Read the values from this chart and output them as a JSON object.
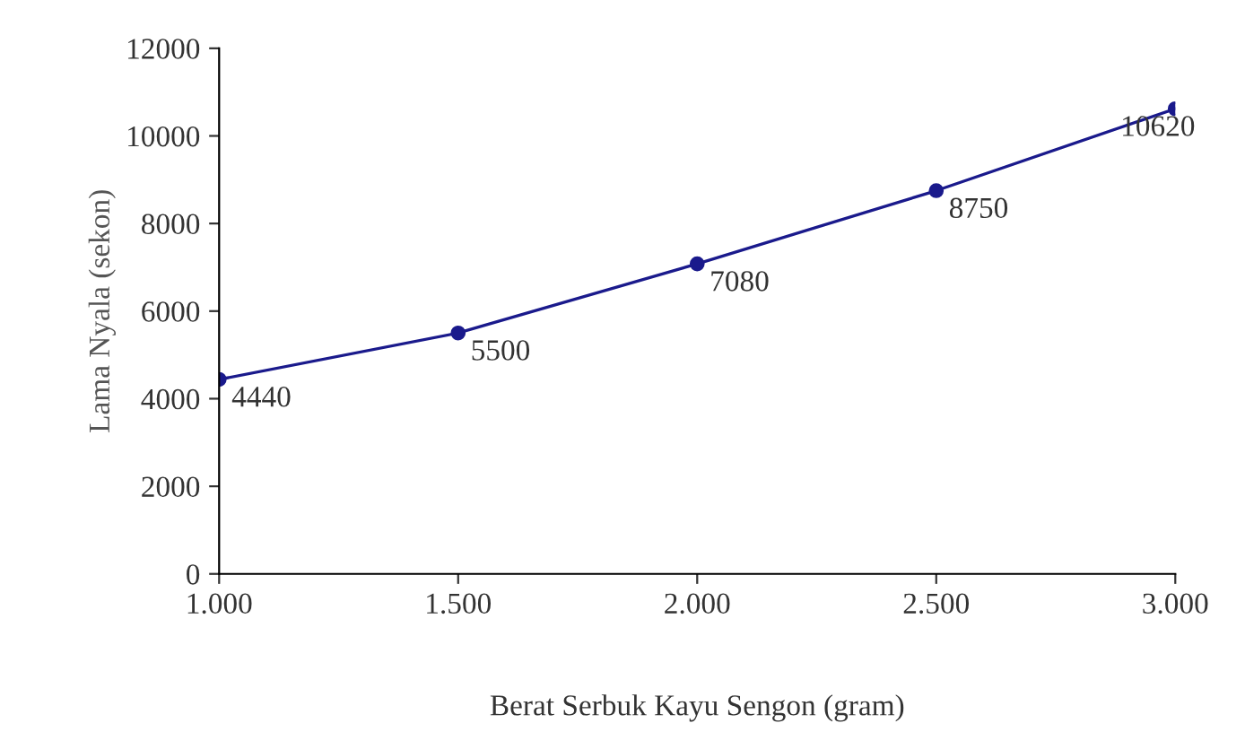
{
  "chart_data": {
    "type": "line",
    "xlabel": "Berat Serbuk Kayu Sengon (gram)",
    "ylabel": "Lama Nyala (sekon)",
    "categories": [
      "1.000",
      "1.500",
      "2.000",
      "2.500",
      "3.000"
    ],
    "series": [
      {
        "color": "#1a1a8c",
        "values": [
          4440,
          5500,
          7080,
          8750,
          10620
        ]
      }
    ],
    "ylim": [
      0,
      12000
    ],
    "yticks": [
      0,
      2000,
      4000,
      6000,
      8000,
      10000,
      12000
    ],
    "data_labels": true,
    "marker": "circle",
    "line_style": "solid",
    "grid": false,
    "legend": false
  }
}
